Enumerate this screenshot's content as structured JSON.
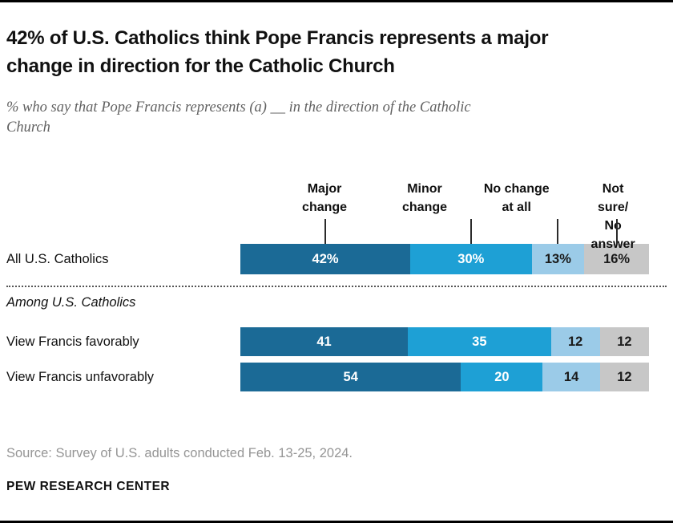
{
  "header": {
    "title": "42% of U.S. Catholics think Pope Francis represents a major change in direction for the Catholic Church",
    "subtitle": "% who say that Pope Francis represents (a) __ in the direction of the Catholic Church"
  },
  "chart_data": {
    "type": "bar",
    "orientation": "horizontal",
    "stacked": true,
    "unit": "%",
    "categories": [
      "Major change",
      "Minor change",
      "No change at all",
      "Not sure/No answer"
    ],
    "colors": [
      "#1b6a96",
      "#1ea0d5",
      "#9bcbe8",
      "#c7c7c7"
    ],
    "value_text_colors": [
      "#ffffff",
      "#ffffff",
      "#1a1a1a",
      "#1a1a1a"
    ],
    "legend_headers": [
      {
        "label": "Major\nchange",
        "center_pct": 20.6,
        "line_pct": 20.8
      },
      {
        "label": "Minor\nchange",
        "center_pct": 45.1,
        "line_pct": 56.4
      },
      {
        "label": "No change\nat all",
        "center_pct": 67.6,
        "line_pct": 77.7
      },
      {
        "label": "Not sure/\nNo answer",
        "center_pct": 91.2,
        "line_pct": 92.1
      }
    ],
    "rows": [
      {
        "label": "All U.S. Catholics",
        "values": [
          42,
          30,
          13,
          16
        ],
        "value_labels": [
          "42%",
          "30%",
          "13%",
          "16%"
        ]
      },
      {
        "divider": true
      },
      {
        "section": "Among U.S. Catholics"
      },
      {
        "label": "View Francis favorably",
        "values": [
          41,
          35,
          12,
          12
        ],
        "value_labels": [
          "41",
          "35",
          "12",
          "12"
        ]
      },
      {
        "label": "View Francis unfavorably",
        "values": [
          54,
          20,
          14,
          12
        ],
        "value_labels": [
          "54",
          "20",
          "14",
          "12"
        ]
      }
    ]
  },
  "footer": {
    "source": "Source: Survey of U.S. adults conducted Feb. 13-25, 2024.",
    "brand": "PEW RESEARCH CENTER"
  }
}
